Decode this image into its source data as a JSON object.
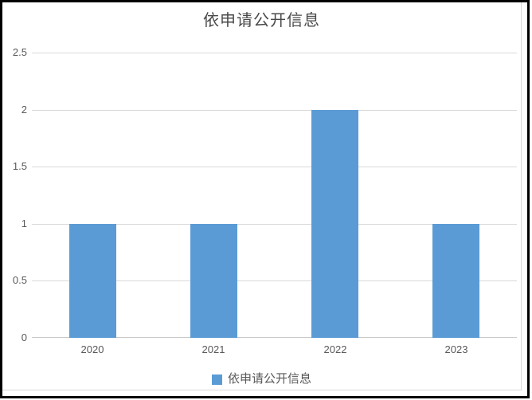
{
  "chart_data": {
    "type": "bar",
    "title": "依申请公开信息",
    "categories": [
      "2020",
      "2021",
      "2022",
      "2023"
    ],
    "series": [
      {
        "name": "依申请公开信息",
        "values": [
          1,
          1,
          2,
          1
        ]
      }
    ],
    "xlabel": "",
    "ylabel": "",
    "ylim": [
      0,
      2.5
    ],
    "yticks": [
      0,
      0.5,
      1,
      1.5,
      2,
      2.5
    ],
    "ytick_labels": [
      "0",
      "0.5",
      "1",
      "1.5",
      "2",
      "2.5"
    ],
    "grid": "horizontal",
    "legend_position": "bottom",
    "legend": [
      "依申请公开信息"
    ],
    "colors": {
      "bar": "#5B9BD5",
      "gridline": "#d9d9d9",
      "axis_line": "#c9c9c9",
      "tick_label": "#595959",
      "title": "#494949",
      "frame_border": "#000000",
      "chart_edge": "#d9d9d9",
      "background": "#ffffff"
    }
  }
}
